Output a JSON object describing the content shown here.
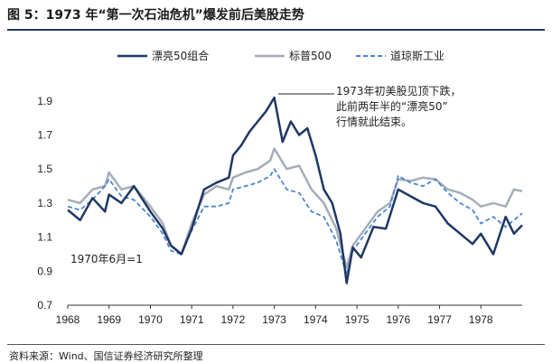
{
  "title": "图 5：1973 年“第一次石油危机”爆发前后美股走势",
  "source": "资料来源：Wind、国信证券经济研究所整理",
  "colors": {
    "nifty": "#1f3864",
    "sp500": "#a6adb8",
    "dow": "#4a86d0"
  },
  "chart_data": {
    "type": "line",
    "xlim": [
      1968,
      1979
    ],
    "ylim": [
      0.7,
      2.0
    ],
    "x_ticks": [
      "1968",
      "1969",
      "1970",
      "1971",
      "1972",
      "1973",
      "1974",
      "1975",
      "1976",
      "1977",
      "1978"
    ],
    "y_ticks": [
      "0.7",
      "0.9",
      "1.1",
      "1.3",
      "1.5",
      "1.7",
      "1.9"
    ],
    "annotations": [
      "1973年初美股见顶下跌，",
      "此前两年半的“漂亮50”",
      "行情就此结束。",
      "1970年6月=1"
    ],
    "series": [
      {
        "name": "漂亮50组合",
        "style": "solid",
        "color_key": "nifty",
        "x": [
          1968.0,
          1968.3,
          1968.6,
          1968.9,
          1969.0,
          1969.3,
          1969.6,
          1970.0,
          1970.3,
          1970.5,
          1970.75,
          1971.0,
          1971.3,
          1971.6,
          1971.9,
          1972.0,
          1972.2,
          1972.4,
          1972.6,
          1972.8,
          1973.0,
          1973.2,
          1973.4,
          1973.6,
          1973.8,
          1974.0,
          1974.2,
          1974.4,
          1974.6,
          1974.75,
          1974.9,
          1975.1,
          1975.4,
          1975.7,
          1976.0,
          1976.3,
          1976.6,
          1976.9,
          1977.2,
          1977.5,
          1977.8,
          1978.0,
          1978.3,
          1978.6,
          1978.8,
          1979.0
        ],
        "y": [
          1.26,
          1.2,
          1.33,
          1.25,
          1.35,
          1.3,
          1.4,
          1.25,
          1.15,
          1.05,
          1.0,
          1.15,
          1.38,
          1.42,
          1.45,
          1.58,
          1.64,
          1.72,
          1.78,
          1.84,
          1.92,
          1.66,
          1.78,
          1.7,
          1.74,
          1.58,
          1.38,
          1.3,
          1.12,
          0.83,
          1.04,
          0.98,
          1.16,
          1.15,
          1.38,
          1.34,
          1.3,
          1.28,
          1.18,
          1.12,
          1.06,
          1.12,
          1.0,
          1.22,
          1.12,
          1.17
        ]
      },
      {
        "name": "标普500",
        "style": "solid",
        "color_key": "sp500",
        "x": [
          1968.0,
          1968.3,
          1968.6,
          1968.9,
          1969.0,
          1969.3,
          1969.6,
          1970.0,
          1970.3,
          1970.5,
          1970.75,
          1971.0,
          1971.3,
          1971.6,
          1971.9,
          1972.0,
          1972.3,
          1972.6,
          1972.9,
          1973.0,
          1973.3,
          1973.6,
          1973.9,
          1974.2,
          1974.5,
          1974.75,
          1974.9,
          1975.2,
          1975.5,
          1975.8,
          1976.0,
          1976.3,
          1976.6,
          1976.9,
          1977.2,
          1977.5,
          1977.8,
          1978.0,
          1978.3,
          1978.6,
          1978.8,
          1979.0
        ],
        "y": [
          1.32,
          1.3,
          1.38,
          1.4,
          1.48,
          1.38,
          1.4,
          1.28,
          1.18,
          1.05,
          1.0,
          1.18,
          1.35,
          1.4,
          1.38,
          1.45,
          1.48,
          1.5,
          1.55,
          1.62,
          1.5,
          1.52,
          1.38,
          1.3,
          1.15,
          0.92,
          1.05,
          1.15,
          1.25,
          1.3,
          1.44,
          1.43,
          1.45,
          1.44,
          1.38,
          1.36,
          1.32,
          1.28,
          1.3,
          1.28,
          1.38,
          1.37
        ]
      },
      {
        "name": "道琼斯工业",
        "style": "dashed",
        "color_key": "dow",
        "x": [
          1968.0,
          1968.3,
          1968.6,
          1968.9,
          1969.0,
          1969.3,
          1969.6,
          1970.0,
          1970.3,
          1970.5,
          1970.75,
          1971.0,
          1971.3,
          1971.6,
          1971.9,
          1972.0,
          1972.3,
          1972.6,
          1972.9,
          1973.0,
          1973.3,
          1973.6,
          1973.9,
          1974.2,
          1974.5,
          1974.75,
          1974.9,
          1975.2,
          1975.5,
          1975.8,
          1976.0,
          1976.3,
          1976.6,
          1976.9,
          1977.2,
          1977.5,
          1977.8,
          1978.0,
          1978.3,
          1978.6,
          1978.8,
          1979.0
        ],
        "y": [
          1.28,
          1.26,
          1.32,
          1.4,
          1.44,
          1.34,
          1.32,
          1.22,
          1.12,
          1.02,
          1.0,
          1.14,
          1.28,
          1.28,
          1.3,
          1.38,
          1.4,
          1.42,
          1.46,
          1.5,
          1.38,
          1.36,
          1.25,
          1.22,
          1.08,
          0.88,
          1.02,
          1.12,
          1.22,
          1.28,
          1.46,
          1.42,
          1.4,
          1.44,
          1.36,
          1.3,
          1.26,
          1.18,
          1.22,
          1.16,
          1.2,
          1.24
        ]
      }
    ]
  }
}
